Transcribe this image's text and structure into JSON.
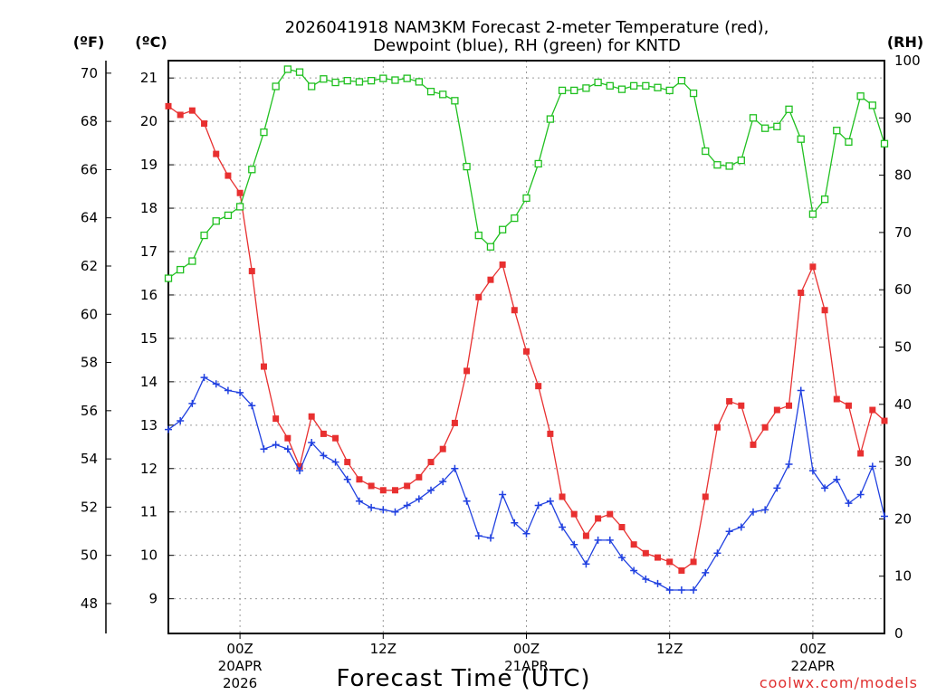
{
  "chart_data": {
    "type": "line",
    "title": "2026041918 NAM3KM Forecast 2-meter Temperature (red),",
    "subtitle": "Dewpoint (blue), RH (green) for KNTD",
    "xlabel": "Forecast Time (UTC)",
    "credit": "coolwx.com/models",
    "x_start_hour": 18,
    "x_end_hour": 78,
    "x_ticks": [
      {
        "hour": 24,
        "label": "00Z",
        "sub1": "20APR",
        "sub2": "2026"
      },
      {
        "hour": 36,
        "label": "12Z",
        "sub1": "",
        "sub2": ""
      },
      {
        "hour": 48,
        "label": "00Z",
        "sub1": "21APR",
        "sub2": ""
      },
      {
        "hour": 60,
        "label": "12Z",
        "sub1": "",
        "sub2": ""
      },
      {
        "hour": 72,
        "label": "00Z",
        "sub1": "22APR",
        "sub2": ""
      }
    ],
    "left_axis_c": {
      "unit": "(ºC)",
      "ylim": [
        8.2,
        21.4
      ],
      "ticks": [
        "9",
        "10",
        "11",
        "12",
        "13",
        "14",
        "15",
        "16",
        "17",
        "18",
        "19",
        "20",
        "21"
      ]
    },
    "left_axis_f": {
      "unit": "(ºF)",
      "ticks": [
        "48",
        "50",
        "52",
        "54",
        "56",
        "58",
        "60",
        "62",
        "64",
        "66",
        "68",
        "70"
      ]
    },
    "right_axis_rh": {
      "unit": "(RH)",
      "ylim": [
        0,
        100
      ],
      "ticks": [
        "0",
        "10",
        "20",
        "30",
        "40",
        "50",
        "60",
        "70",
        "80",
        "90",
        "100"
      ]
    },
    "series": [
      {
        "name": "Temperature",
        "color": "#e83030",
        "marker": "filled-square",
        "axis": "celsius",
        "values": [
          20.35,
          20.15,
          20.25,
          19.95,
          19.25,
          18.75,
          18.35,
          16.55,
          14.35,
          13.15,
          12.7,
          12.05,
          13.2,
          12.8,
          12.7,
          12.15,
          11.75,
          11.6,
          11.5,
          11.5,
          11.6,
          11.8,
          12.15,
          12.45,
          13.05,
          14.25,
          15.95,
          16.35,
          16.7,
          15.65,
          14.7,
          13.9,
          12.8,
          11.35,
          10.95,
          10.45,
          10.85,
          10.95,
          10.65,
          10.25,
          10.05,
          9.95,
          9.85,
          9.65,
          9.85,
          11.35,
          12.95,
          13.55,
          13.45,
          12.55,
          12.95,
          13.35,
          13.45,
          16.05,
          16.65,
          15.65,
          13.6,
          13.45,
          12.35,
          13.35,
          13.1
        ]
      },
      {
        "name": "Dewpoint",
        "color": "#2040e0",
        "marker": "plus",
        "axis": "celsius",
        "values": [
          12.9,
          13.1,
          13.5,
          14.1,
          13.95,
          13.8,
          13.75,
          13.45,
          12.45,
          12.55,
          12.45,
          11.95,
          12.6,
          12.3,
          12.15,
          11.75,
          11.25,
          11.1,
          11.05,
          11.0,
          11.15,
          11.3,
          11.5,
          11.7,
          12.0,
          11.25,
          10.45,
          10.4,
          11.4,
          10.75,
          10.5,
          11.15,
          11.25,
          10.65,
          10.25,
          9.8,
          10.35,
          10.35,
          9.95,
          9.65,
          9.45,
          9.35,
          9.2,
          9.2,
          9.2,
          9.6,
          10.05,
          10.55,
          10.65,
          11.0,
          11.05,
          11.55,
          12.1,
          13.8,
          11.95,
          11.55,
          11.75,
          11.2,
          11.4,
          12.05,
          10.9
        ]
      },
      {
        "name": "Relative Humidity",
        "color": "#20c020",
        "marker": "open-square",
        "axis": "rh",
        "values": [
          62,
          63.5,
          65,
          69.5,
          72,
          73,
          74.5,
          81,
          87.5,
          95.5,
          98.5,
          98,
          95.5,
          96.8,
          96.2,
          96.5,
          96.3,
          96.5,
          96.9,
          96.6,
          96.9,
          96.3,
          94.6,
          94.1,
          93,
          81.5,
          69.5,
          67.5,
          70.5,
          72.5,
          76,
          82,
          89.8,
          94.8,
          94.8,
          95.2,
          96.2,
          95.6,
          95,
          95.6,
          95.6,
          95.3,
          94.8,
          96.5,
          94.3,
          84.2,
          81.8,
          81.6,
          82.6,
          90,
          88.2,
          88.5,
          91.5,
          86.3,
          73.2,
          75.8,
          87.8,
          85.8,
          93.8,
          92.2,
          85.5
        ]
      }
    ]
  }
}
